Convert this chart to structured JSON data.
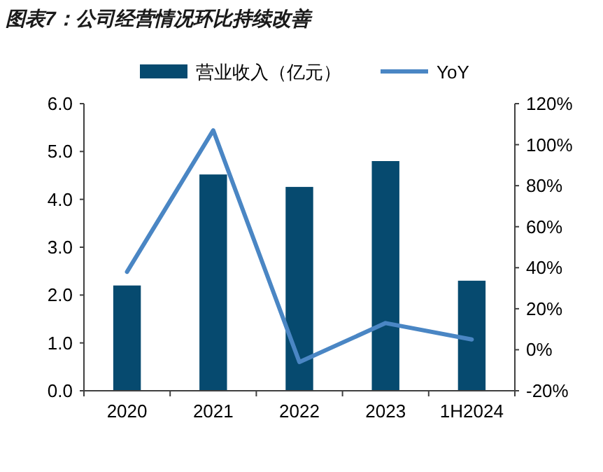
{
  "chart_data": {
    "type": "bar",
    "title": "图表7：公司经营情况环比持续改善",
    "categories": [
      "2020",
      "2021",
      "2022",
      "2023",
      "1H2024"
    ],
    "series": [
      {
        "name": "营业收入（亿元）",
        "color": "#064a6f",
        "values": [
          2.2,
          4.52,
          4.26,
          4.8,
          2.3
        ]
      },
      {
        "name": "YoY",
        "type": "line",
        "axis": "y2",
        "color": "#4a86c4",
        "values": [
          38,
          107,
          -6,
          13,
          5
        ]
      }
    ],
    "ylim": [
      0,
      6
    ],
    "yticks": [
      {
        "value": 0,
        "label": "0.0"
      },
      {
        "value": 1,
        "label": "1.0"
      },
      {
        "value": 2,
        "label": "2.0"
      },
      {
        "value": 3,
        "label": "3.0"
      },
      {
        "value": 4,
        "label": "4.0"
      },
      {
        "value": 5,
        "label": "5.0"
      },
      {
        "value": 6,
        "label": "6.0"
      }
    ],
    "y2lim": [
      -20,
      120
    ],
    "y2ticks": [
      {
        "value": -20,
        "label": "-20%"
      },
      {
        "value": 0,
        "label": "0%"
      },
      {
        "value": 20,
        "label": "20%"
      },
      {
        "value": 40,
        "label": "40%"
      },
      {
        "value": 60,
        "label": "60%"
      },
      {
        "value": 80,
        "label": "80%"
      },
      {
        "value": 100,
        "label": "100%"
      },
      {
        "value": 120,
        "label": "120%"
      }
    ],
    "grid": false,
    "legend": "top",
    "marker": "none",
    "line_style": "solid"
  }
}
